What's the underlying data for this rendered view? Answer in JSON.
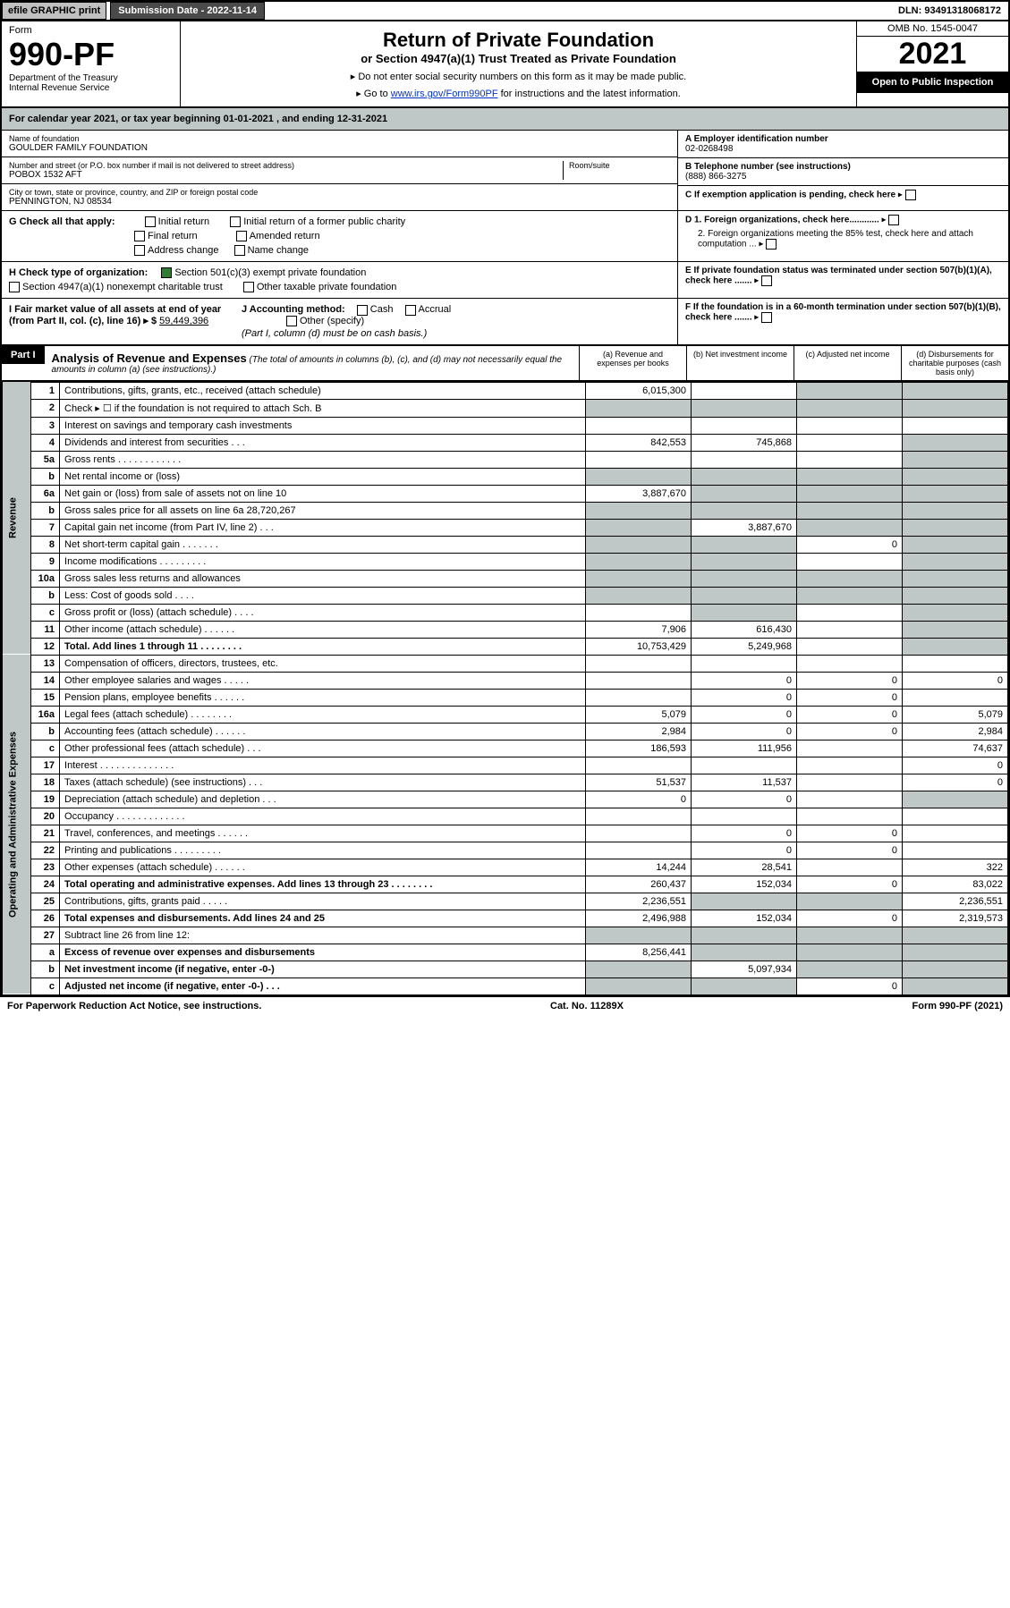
{
  "top": {
    "efile": "efile GRAPHIC print",
    "submission": "Submission Date - 2022-11-14",
    "dln": "DLN: 93491318068172"
  },
  "header": {
    "form_label": "Form",
    "form_no": "990-PF",
    "dept": "Department of the Treasury",
    "irs": "Internal Revenue Service",
    "title": "Return of Private Foundation",
    "subtitle": "or Section 4947(a)(1) Trust Treated as Private Foundation",
    "instr1": "▸ Do not enter social security numbers on this form as it may be made public.",
    "instr2_pre": "▸ Go to ",
    "instr2_link": "www.irs.gov/Form990PF",
    "instr2_post": " for instructions and the latest information.",
    "omb": "OMB No. 1545-0047",
    "year": "2021",
    "open": "Open to Public Inspection"
  },
  "calyear": "For calendar year 2021, or tax year beginning 01-01-2021              , and ending 12-31-2021",
  "info": {
    "name_lbl": "Name of foundation",
    "name": "GOULDER FAMILY FOUNDATION",
    "addr_lbl": "Number and street (or P.O. box number if mail is not delivered to street address)",
    "addr": "POBOX 1532 AFT",
    "room_lbl": "Room/suite",
    "city_lbl": "City or town, state or province, country, and ZIP or foreign postal code",
    "city": "PENNINGTON, NJ  08534",
    "ein_lbl": "A Employer identification number",
    "ein": "02-0268498",
    "tel_lbl": "B Telephone number (see instructions)",
    "tel": "(888) 866-3275",
    "c": "C If exemption application is pending, check here",
    "d1": "D 1. Foreign organizations, check here............",
    "d2": "2. Foreign organizations meeting the 85% test, check here and attach computation ...",
    "e": "E If private foundation status was terminated under section 507(b)(1)(A), check here .......",
    "f": "F If the foundation is in a 60-month termination under section 507(b)(1)(B), check here .......",
    "g": "G Check all that apply:",
    "g_opts": [
      "Initial return",
      "Initial return of a former public charity",
      "Final return",
      "Amended return",
      "Address change",
      "Name change"
    ],
    "h": "H Check type of organization:",
    "h1": "Section 501(c)(3) exempt private foundation",
    "h2": "Section 4947(a)(1) nonexempt charitable trust",
    "h3": "Other taxable private foundation",
    "i": "I Fair market value of all assets at end of year (from Part II, col. (c), line 16) ▸ $",
    "i_val": "59,449,396",
    "j": "J Accounting method:",
    "j_cash": "Cash",
    "j_acc": "Accrual",
    "j_other": "Other (specify)",
    "j_note": "(Part I, column (d) must be on cash basis.)"
  },
  "part1": {
    "hdr": "Part I",
    "title": "Analysis of Revenue and Expenses",
    "title_note": "(The total of amounts in columns (b), (c), and (d) may not necessarily equal the amounts in column (a) (see instructions).)",
    "cols": [
      "(a) Revenue and expenses per books",
      "(b) Net investment income",
      "(c) Adjusted net income",
      "(d) Disbursements for charitable purposes (cash basis only)"
    ]
  },
  "sections": {
    "rev": "Revenue",
    "exp": "Operating and Administrative Expenses"
  },
  "lines": [
    {
      "n": "1",
      "d": "Contributions, gifts, grants, etc., received (attach schedule)",
      "a": "6,015,300",
      "b": "",
      "c": "",
      "dd": "",
      "bg": "",
      "cg": "g",
      "dg": "g"
    },
    {
      "n": "2",
      "d": "Check ▸ ☐ if the foundation is not required to attach Sch. B",
      "a": "",
      "b": "",
      "c": "",
      "dd": "",
      "ag": "g",
      "bg": "g",
      "cg": "g",
      "dg": "g"
    },
    {
      "n": "3",
      "d": "Interest on savings and temporary cash investments",
      "a": "",
      "b": "",
      "c": "",
      "dd": ""
    },
    {
      "n": "4",
      "d": "Dividends and interest from securities   .  .  .",
      "a": "842,553",
      "b": "745,868",
      "c": "",
      "dd": "",
      "dg": "g"
    },
    {
      "n": "5a",
      "d": "Gross rents   .  .  .  .  .  .  .  .  .  .  .  .",
      "a": "",
      "b": "",
      "c": "",
      "dd": "",
      "dg": "g"
    },
    {
      "n": "b",
      "d": "Net rental income or (loss)",
      "a": "",
      "b": "",
      "c": "",
      "dd": "",
      "ag": "g",
      "bg": "g",
      "cg": "g",
      "dg": "g"
    },
    {
      "n": "6a",
      "d": "Net gain or (loss) from sale of assets not on line 10",
      "a": "3,887,670",
      "b": "",
      "c": "",
      "dd": "",
      "bg": "g",
      "cg": "g",
      "dg": "g"
    },
    {
      "n": "b",
      "d": "Gross sales price for all assets on line 6a          28,720,267",
      "a": "",
      "b": "",
      "c": "",
      "dd": "",
      "ag": "g",
      "bg": "g",
      "cg": "g",
      "dg": "g"
    },
    {
      "n": "7",
      "d": "Capital gain net income (from Part IV, line 2)   .  .  .",
      "a": "",
      "b": "3,887,670",
      "c": "",
      "dd": "",
      "ag": "g",
      "cg": "g",
      "dg": "g"
    },
    {
      "n": "8",
      "d": "Net short-term capital gain  .  .  .  .  .  .  .",
      "a": "",
      "b": "",
      "c": "0",
      "dd": "",
      "ag": "g",
      "bg": "g",
      "dg": "g"
    },
    {
      "n": "9",
      "d": "Income modifications  .  .  .  .  .  .  .  .  .",
      "a": "",
      "b": "",
      "c": "",
      "dd": "",
      "ag": "g",
      "bg": "g",
      "dg": "g"
    },
    {
      "n": "10a",
      "d": "Gross sales less returns and allowances",
      "a": "",
      "b": "",
      "c": "",
      "dd": "",
      "ag": "g",
      "bg": "g",
      "cg": "g",
      "dg": "g"
    },
    {
      "n": "b",
      "d": "Less: Cost of goods sold   .  .  .  .",
      "a": "",
      "b": "",
      "c": "",
      "dd": "",
      "ag": "g",
      "bg": "g",
      "cg": "g",
      "dg": "g"
    },
    {
      "n": "c",
      "d": "Gross profit or (loss) (attach schedule)   .  .  .  .",
      "a": "",
      "b": "",
      "c": "",
      "dd": "",
      "bg": "g",
      "dg": "g"
    },
    {
      "n": "11",
      "d": "Other income (attach schedule)   .  .  .  .  .  .",
      "a": "7,906",
      "b": "616,430",
      "c": "",
      "dd": "",
      "dg": "g"
    },
    {
      "n": "12",
      "d": "Total. Add lines 1 through 11  .  .  .  .  .  .  .  .",
      "a": "10,753,429",
      "b": "5,249,968",
      "c": "",
      "dd": "",
      "bold": true,
      "dg": "g"
    },
    {
      "sec": "exp"
    },
    {
      "n": "13",
      "d": "Compensation of officers, directors, trustees, etc.",
      "a": "",
      "b": "",
      "c": "",
      "dd": ""
    },
    {
      "n": "14",
      "d": "Other employee salaries and wages   .  .  .  .  .",
      "a": "",
      "b": "0",
      "c": "0",
      "dd": "0"
    },
    {
      "n": "15",
      "d": "Pension plans, employee benefits  .  .  .  .  .  .",
      "a": "",
      "b": "0",
      "c": "0",
      "dd": ""
    },
    {
      "n": "16a",
      "d": "Legal fees (attach schedule)  .  .  .  .  .  .  .  .",
      "a": "5,079",
      "b": "0",
      "c": "0",
      "dd": "5,079"
    },
    {
      "n": "b",
      "d": "Accounting fees (attach schedule)  .  .  .  .  .  .",
      "a": "2,984",
      "b": "0",
      "c": "0",
      "dd": "2,984"
    },
    {
      "n": "c",
      "d": "Other professional fees (attach schedule)   .  .  .",
      "a": "186,593",
      "b": "111,956",
      "c": "",
      "dd": "74,637"
    },
    {
      "n": "17",
      "d": "Interest  .  .  .  .  .  .  .  .  .  .  .  .  .  .",
      "a": "",
      "b": "",
      "c": "",
      "dd": "0"
    },
    {
      "n": "18",
      "d": "Taxes (attach schedule) (see instructions)   .  .  .",
      "a": "51,537",
      "b": "11,537",
      "c": "",
      "dd": "0"
    },
    {
      "n": "19",
      "d": "Depreciation (attach schedule) and depletion   .  .  .",
      "a": "0",
      "b": "0",
      "c": "",
      "dd": "",
      "dg": "g"
    },
    {
      "n": "20",
      "d": "Occupancy  .  .  .  .  .  .  .  .  .  .  .  .  .",
      "a": "",
      "b": "",
      "c": "",
      "dd": ""
    },
    {
      "n": "21",
      "d": "Travel, conferences, and meetings  .  .  .  .  .  .",
      "a": "",
      "b": "0",
      "c": "0",
      "dd": ""
    },
    {
      "n": "22",
      "d": "Printing and publications  .  .  .  .  .  .  .  .  .",
      "a": "",
      "b": "0",
      "c": "0",
      "dd": ""
    },
    {
      "n": "23",
      "d": "Other expenses (attach schedule)  .  .  .  .  .  .",
      "a": "14,244",
      "b": "28,541",
      "c": "",
      "dd": "322"
    },
    {
      "n": "24",
      "d": "Total operating and administrative expenses. Add lines 13 through 23  .  .  .  .  .  .  .  .",
      "a": "260,437",
      "b": "152,034",
      "c": "0",
      "dd": "83,022",
      "bold": true
    },
    {
      "n": "25",
      "d": "Contributions, gifts, grants paid   .  .  .  .  .",
      "a": "2,236,551",
      "b": "",
      "c": "",
      "dd": "2,236,551",
      "bg": "g",
      "cg": "g"
    },
    {
      "n": "26",
      "d": "Total expenses and disbursements. Add lines 24 and 25",
      "a": "2,496,988",
      "b": "152,034",
      "c": "0",
      "dd": "2,319,573",
      "bold": true
    },
    {
      "n": "27",
      "d": "Subtract line 26 from line 12:",
      "a": "",
      "b": "",
      "c": "",
      "dd": "",
      "ag": "g",
      "bg": "g",
      "cg": "g",
      "dg": "g"
    },
    {
      "n": "a",
      "d": "Excess of revenue over expenses and disbursements",
      "a": "8,256,441",
      "b": "",
      "c": "",
      "dd": "",
      "bold": true,
      "bg": "g",
      "cg": "g",
      "dg": "g"
    },
    {
      "n": "b",
      "d": "Net investment income (if negative, enter -0-)",
      "a": "",
      "b": "5,097,934",
      "c": "",
      "dd": "",
      "bold": true,
      "ag": "g",
      "cg": "g",
      "dg": "g"
    },
    {
      "n": "c",
      "d": "Adjusted net income (if negative, enter -0-)  .  .  .",
      "a": "",
      "b": "",
      "c": "0",
      "dd": "",
      "bold": true,
      "ag": "g",
      "bg": "g",
      "dg": "g"
    }
  ],
  "footer": {
    "left": "For Paperwork Reduction Act Notice, see instructions.",
    "mid": "Cat. No. 11289X",
    "right": "Form 990-PF (2021)"
  }
}
